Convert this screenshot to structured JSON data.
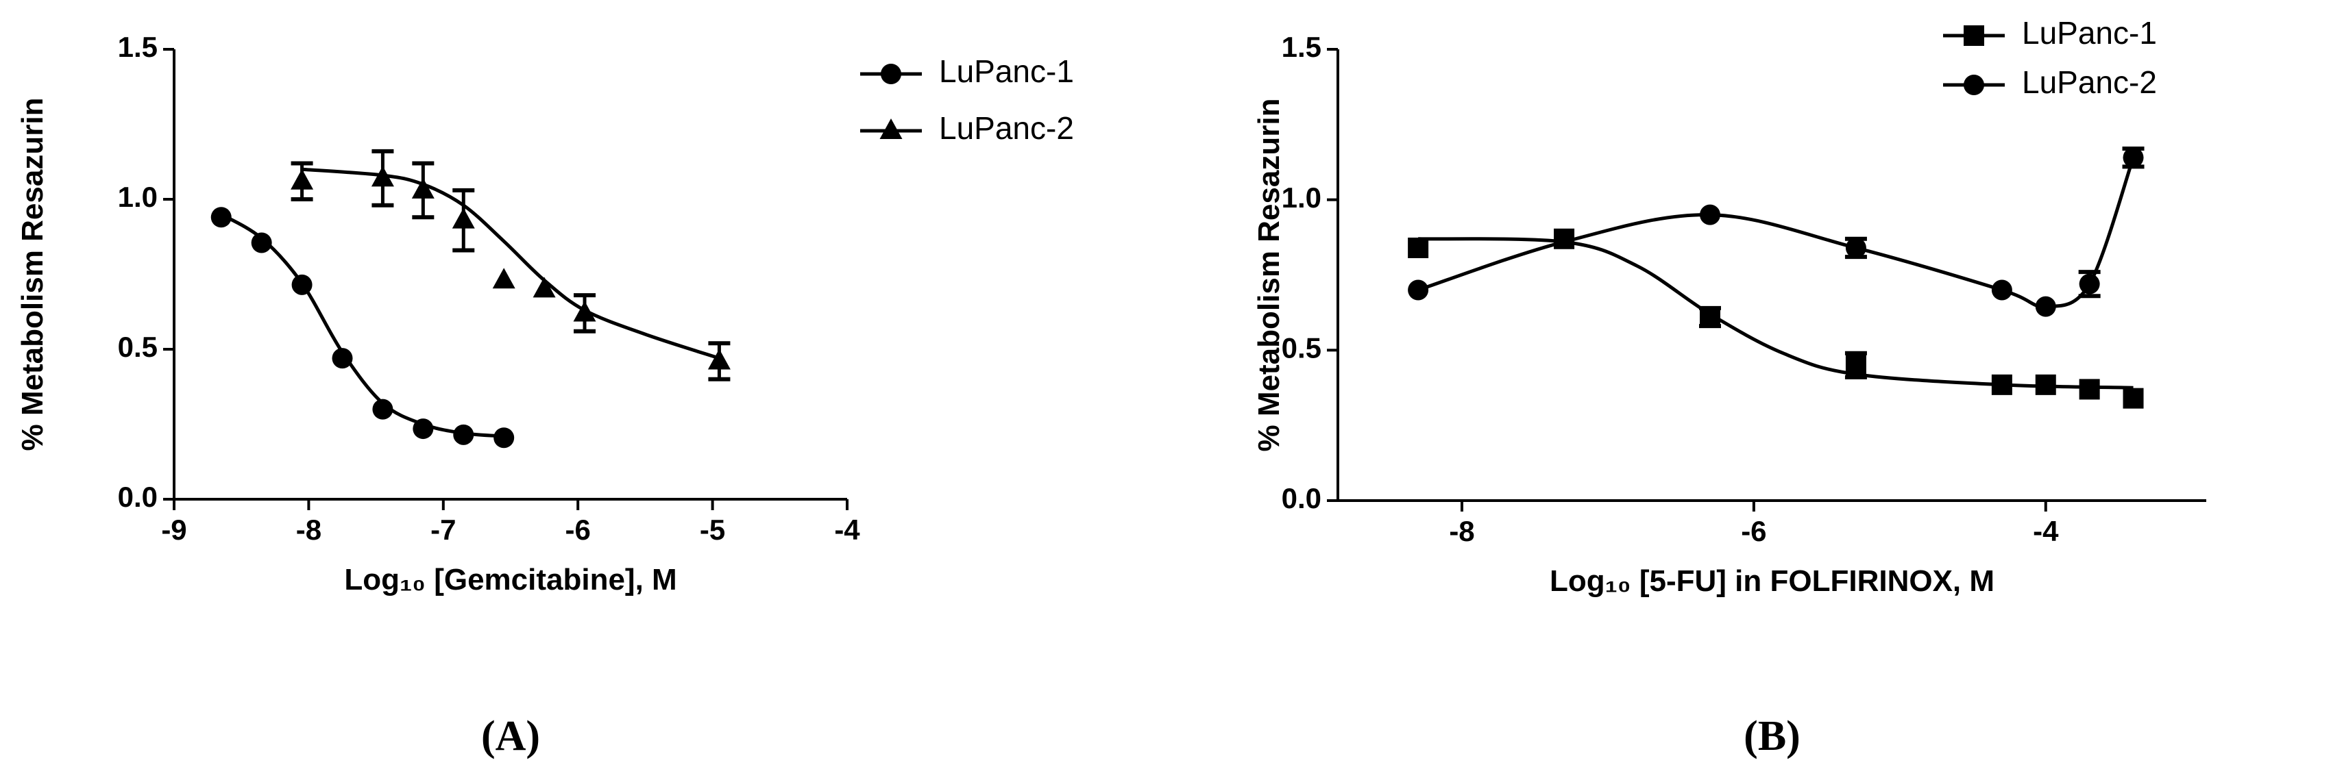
{
  "chart_data": [
    {
      "type": "scatter",
      "x_label": "Log₁₀ [Gemcitabine], M",
      "y_label": "% Metabolism Resazurin",
      "caption": "(A)",
      "xlim": [
        -9,
        -4
      ],
      "ylim": [
        0,
        1.5
      ],
      "xticks": [
        -9,
        -8,
        -7,
        -6,
        -5,
        -4
      ],
      "yticks": [
        {
          "value": 0,
          "label": "0.0"
        },
        {
          "value": 0.5,
          "label": "0.5"
        },
        {
          "value": 1,
          "label": "1.0"
        },
        {
          "value": 1.5,
          "label": "1.5"
        }
      ],
      "legend": "outside-right",
      "series": [
        {
          "name": "LuPanc-1",
          "color": "#000000",
          "marker": "circle",
          "x": [
            -8.65,
            -8.35,
            -8.05,
            -7.75,
            -7.45,
            -7.15,
            -6.85,
            -6.55
          ],
          "values": [
            0.94,
            0.855,
            0.715,
            0.47,
            0.3,
            0.235,
            0.215,
            0.205
          ],
          "errors": [
            null,
            null,
            null,
            null,
            null,
            null,
            null,
            null
          ],
          "curve": {
            "x": [
              -8.65,
              -8.35,
              -8.05,
              -7.75,
              -7.45,
              -7.15,
              -6.85,
              -6.55
            ],
            "y": [
              0.95,
              0.87,
              0.72,
              0.49,
              0.32,
              0.25,
              0.22,
              0.21
            ]
          }
        },
        {
          "name": "LuPanc-2",
          "color": "#000000",
          "marker": "triangle",
          "x": [
            -8.05,
            -7.45,
            -7.15,
            -6.85,
            -6.55,
            -6.25,
            -5.95,
            -4.95
          ],
          "values": [
            1.06,
            1.07,
            1.03,
            0.93,
            0.73,
            0.7,
            0.62,
            0.46
          ],
          "errors": [
            0.06,
            0.09,
            0.09,
            0.1,
            null,
            null,
            0.06,
            0.06
          ],
          "curve": {
            "x": [
              -8.05,
              -7.45,
              -7.15,
              -6.85,
              -6.55,
              -6.25,
              -5.95,
              -5.5,
              -4.95
            ],
            "y": [
              1.1,
              1.08,
              1.05,
              0.98,
              0.86,
              0.73,
              0.63,
              0.55,
              0.47
            ]
          }
        }
      ]
    },
    {
      "type": "scatter",
      "x_label": "Log₁₀ [5-FU] in FOLFIRINOX, M",
      "y_label": "% Metabolism Resazurin",
      "caption": "(B)",
      "xlim": [
        -8.85,
        -2.9
      ],
      "ylim": [
        0,
        1.5
      ],
      "xticks": [
        -8,
        -6,
        -4
      ],
      "yticks": [
        {
          "value": 0,
          "label": "0.0"
        },
        {
          "value": 0.5,
          "label": "0.5"
        },
        {
          "value": 1,
          "label": "1.0"
        },
        {
          "value": 1.5,
          "label": "1.5"
        }
      ],
      "legend": "top-right",
      "series": [
        {
          "name": "LuPanc-1",
          "color": "#000000",
          "marker": "square",
          "x": [
            -8.3,
            -7.3,
            -6.3,
            -5.3,
            -4.3,
            -4.0,
            -3.7,
            -3.4
          ],
          "values": [
            0.84,
            0.87,
            0.61,
            0.45,
            0.385,
            0.385,
            0.37,
            0.34
          ],
          "errors": [
            null,
            null,
            0.03,
            0.04,
            null,
            null,
            null,
            null
          ],
          "curve": {
            "x": [
              -8.3,
              -7.3,
              -6.8,
              -6.3,
              -5.8,
              -5.3,
              -4.3,
              -3.4
            ],
            "y": [
              0.87,
              0.86,
              0.78,
              0.62,
              0.49,
              0.42,
              0.385,
              0.375
            ]
          }
        },
        {
          "name": "LuPanc-2",
          "color": "#000000",
          "marker": "circle",
          "x": [
            -8.3,
            -6.3,
            -5.3,
            -4.3,
            -4.0,
            -3.7,
            -3.4
          ],
          "values": [
            0.7,
            0.95,
            0.84,
            0.7,
            0.645,
            0.72,
            1.14
          ],
          "errors": [
            null,
            null,
            0.03,
            null,
            null,
            0.04,
            0.03
          ],
          "curve": {
            "x": [
              -8.3,
              -7.3,
              -6.3,
              -5.3,
              -4.3,
              -4.0,
              -3.7,
              -3.4
            ],
            "y": [
              0.7,
              0.86,
              0.95,
              0.84,
              0.7,
              0.645,
              0.72,
              1.14
            ]
          }
        }
      ]
    }
  ]
}
